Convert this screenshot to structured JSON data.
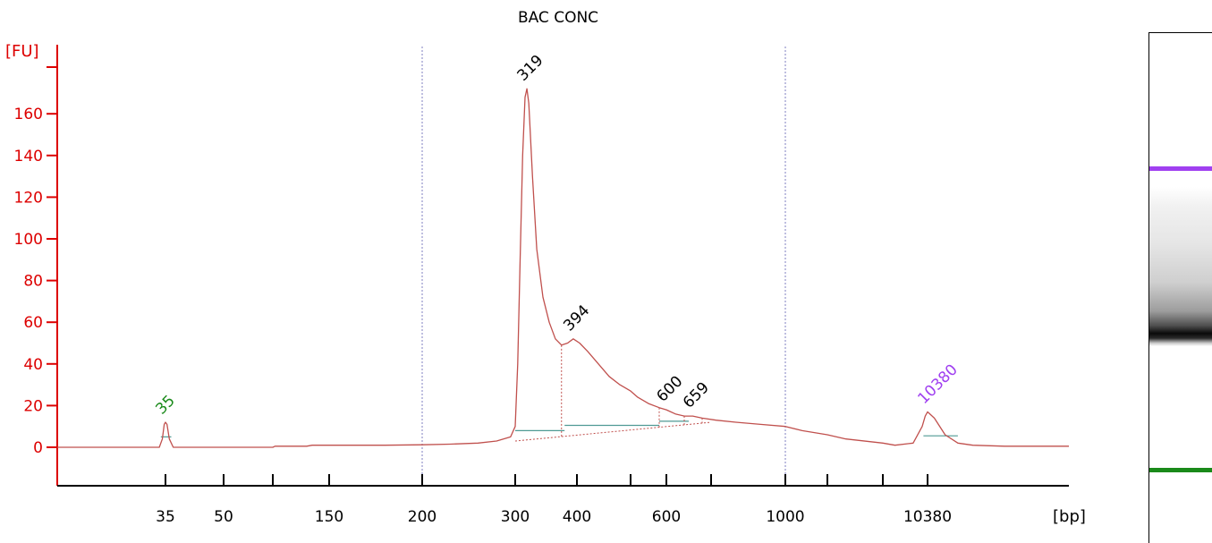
{
  "colors": {
    "axis": "#dd0000",
    "trace": "#c0504d",
    "baseline": "#4f9a94",
    "lower_marker": "#1a8a1a",
    "upper_marker": "#a040f0",
    "peak_label": "#000000",
    "divider": "#7f7fc0"
  },
  "chart_data": {
    "type": "line",
    "title": "BAC CONC",
    "ylabel": "[FU]",
    "xlabel": "[bp]",
    "x_scale": "ladder",
    "ylim": [
      -18,
      180
    ],
    "y_ticks": [
      0,
      20,
      40,
      60,
      80,
      100,
      120,
      140,
      160
    ],
    "x_ticks": [
      "35",
      "50",
      "",
      "150",
      "200",
      "300",
      "400",
      "",
      "600",
      "",
      "1000",
      "",
      "",
      "10380"
    ],
    "grid": false,
    "series": [
      {
        "values": [
          [
            0,
            0
          ],
          [
            33,
            0
          ],
          [
            34,
            4
          ],
          [
            34.6,
            11
          ],
          [
            35,
            12
          ],
          [
            35.4,
            11
          ],
          [
            36,
            4
          ],
          [
            37,
            0
          ],
          [
            100,
            0
          ],
          [
            102,
            0.5
          ],
          [
            130,
            0.5
          ],
          [
            135,
            1
          ],
          [
            180,
            1
          ],
          [
            200,
            1.2
          ],
          [
            230,
            1.5
          ],
          [
            260,
            2
          ],
          [
            280,
            3
          ],
          [
            295,
            5
          ],
          [
            300,
            10
          ],
          [
            304,
            40
          ],
          [
            308,
            90
          ],
          [
            312,
            140
          ],
          [
            316,
            168
          ],
          [
            319,
            172
          ],
          [
            322,
            165
          ],
          [
            328,
            130
          ],
          [
            335,
            95
          ],
          [
            345,
            72
          ],
          [
            355,
            60
          ],
          [
            365,
            52
          ],
          [
            375,
            49
          ],
          [
            385,
            50
          ],
          [
            394,
            52
          ],
          [
            405,
            50
          ],
          [
            420,
            46
          ],
          [
            440,
            40
          ],
          [
            460,
            34
          ],
          [
            480,
            30
          ],
          [
            500,
            27
          ],
          [
            520,
            24
          ],
          [
            550,
            21
          ],
          [
            580,
            19
          ],
          [
            600,
            18
          ],
          [
            620,
            16
          ],
          [
            640,
            15
          ],
          [
            659,
            15
          ],
          [
            680,
            14
          ],
          [
            720,
            13
          ],
          [
            800,
            12
          ],
          [
            900,
            11
          ],
          [
            1000,
            10
          ],
          [
            1200,
            8
          ],
          [
            1500,
            6
          ],
          [
            2000,
            4
          ],
          [
            3000,
            2
          ],
          [
            5000,
            1
          ],
          [
            8000,
            2
          ],
          [
            9500,
            10
          ],
          [
            10000,
            15
          ],
          [
            10380,
            17
          ],
          [
            10700,
            14
          ],
          [
            11200,
            6
          ],
          [
            11800,
            2
          ],
          [
            12500,
            1
          ],
          [
            14000,
            0.5
          ],
          [
            17000,
            0.5
          ]
        ]
      }
    ],
    "peaks": [
      {
        "label": "35",
        "x": 35,
        "y": 12,
        "kind": "lower_marker"
      },
      {
        "label": "319",
        "x": 319,
        "y": 172,
        "kind": "peak"
      },
      {
        "label": "394",
        "x": 394,
        "y": 52,
        "kind": "peak"
      },
      {
        "label": "600",
        "x": 600,
        "y": 18,
        "kind": "peak"
      },
      {
        "label": "659",
        "x": 659,
        "y": 15,
        "kind": "peak"
      },
      {
        "label": "10380",
        "x": 10380,
        "y": 17,
        "kind": "upper_marker"
      }
    ],
    "dividers": [
      200,
      1000
    ]
  }
}
